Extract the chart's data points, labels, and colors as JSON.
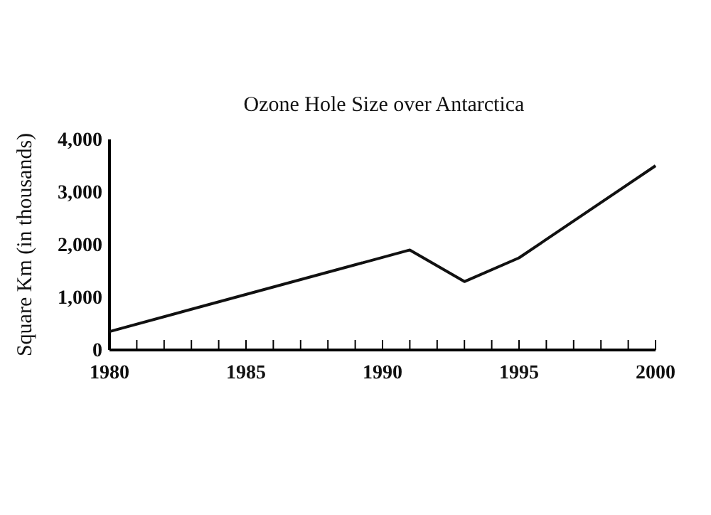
{
  "chart_data": {
    "type": "line",
    "title": "Ozone Hole Size over Antarctica",
    "ylabel": "Square Km (in thousands)",
    "x": [
      1980,
      1991,
      1993,
      1995,
      2000
    ],
    "series": [
      {
        "color": "#111111",
        "values": [
          350,
          1900,
          1300,
          1750,
          3500
        ]
      }
    ],
    "xlim": [
      1980,
      2000
    ],
    "xticks": [
      1980,
      {
        "value": 1981,
        "label": null
      },
      {
        "value": 1982,
        "label": null
      },
      {
        "value": 1983,
        "label": null
      },
      {
        "value": 1984,
        "label": null
      },
      1985,
      {
        "value": 1986,
        "label": null
      },
      {
        "value": 1987,
        "label": null
      },
      {
        "value": 1988,
        "label": null
      },
      {
        "value": 1989,
        "label": null
      },
      1990,
      {
        "value": 1991,
        "label": null
      },
      {
        "value": 1992,
        "label": null
      },
      {
        "value": 1993,
        "label": null
      },
      {
        "value": 1994,
        "label": null
      },
      1995,
      {
        "value": 1996,
        "label": null
      },
      {
        "value": 1997,
        "label": null
      },
      {
        "value": 1998,
        "label": null
      },
      {
        "value": 1999,
        "label": null
      },
      2000
    ],
    "ylim": [
      0,
      4000
    ],
    "yticks": [
      {
        "value": 0,
        "label": "0"
      },
      {
        "value": 1000,
        "label": "1,000"
      },
      {
        "value": 2000,
        "label": "2,000"
      },
      {
        "value": 3000,
        "label": "3,000"
      },
      {
        "value": 4000,
        "label": "4,000"
      }
    ],
    "grid": false,
    "marker": "none",
    "line_style": "solid"
  }
}
